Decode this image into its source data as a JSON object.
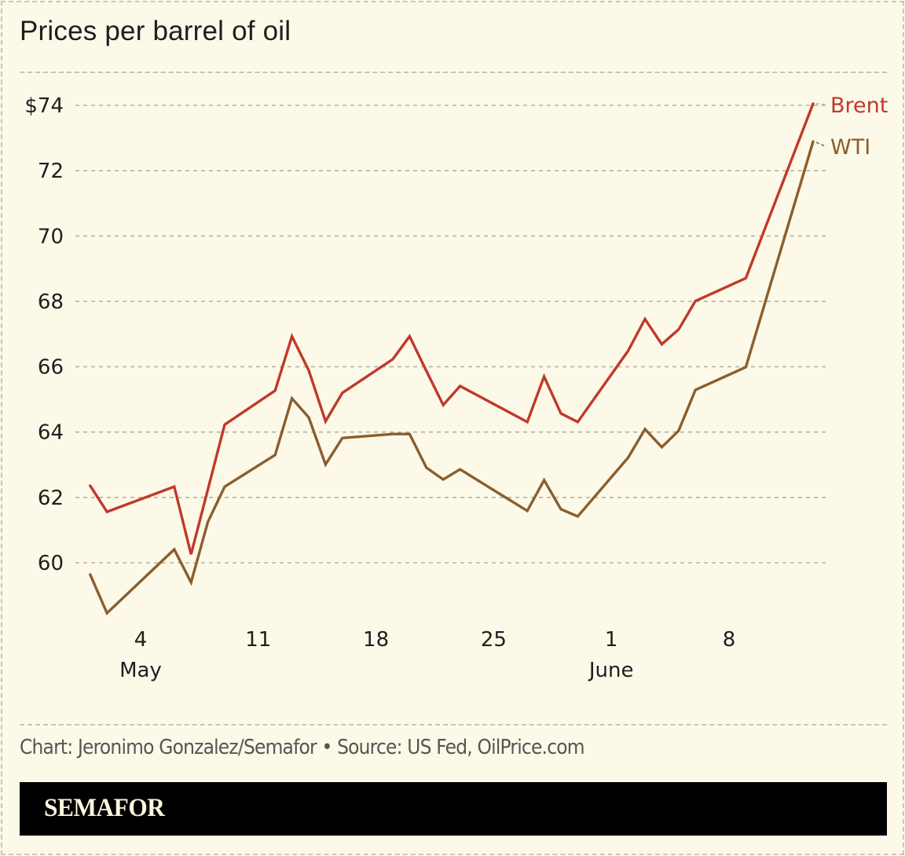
{
  "chart_data": {
    "type": "line",
    "title": "Prices per barrel of oil",
    "xlabel": "",
    "ylabel": "",
    "ylim": [
      58,
      74
    ],
    "y_ticks": [
      60,
      62,
      64,
      66,
      68,
      70,
      72,
      74
    ],
    "y_tick_labels": [
      "60",
      "62",
      "64",
      "66",
      "68",
      "70",
      "72",
      "$74"
    ],
    "grid": true,
    "x_ticks": [
      {
        "day": 4,
        "label": "4",
        "sublabel": "May"
      },
      {
        "day": 11,
        "label": "11",
        "sublabel": ""
      },
      {
        "day": 18,
        "label": "18",
        "sublabel": ""
      },
      {
        "day": 25,
        "label": "25",
        "sublabel": ""
      },
      {
        "day": 32,
        "label": "1",
        "sublabel": "June"
      },
      {
        "day": 39,
        "label": "8",
        "sublabel": ""
      }
    ],
    "x_day_index_note": "days counted from May 0 (May 1 = 1, June 1 = 32)",
    "x": [
      1,
      2,
      6,
      7,
      8,
      9,
      12,
      13,
      14,
      15,
      16,
      19,
      20,
      21,
      22,
      23,
      27,
      28,
      29,
      30,
      33,
      34,
      35,
      36,
      37,
      40,
      44
    ],
    "x_labels": [
      "May 1",
      "May 2",
      "May 6",
      "May 7",
      "May 8",
      "May 9",
      "May 12",
      "May 13",
      "May 14",
      "May 15",
      "May 16",
      "May 19",
      "May 20",
      "May 21",
      "May 22",
      "May 23",
      "May 27",
      "May 28",
      "May 29",
      "May 30",
      "Jun 2",
      "Jun 3",
      "Jun 4",
      "Jun 5",
      "Jun 6",
      "Jun 9",
      "Jun 13"
    ],
    "series": [
      {
        "name": "Brent",
        "color": "#c0392b",
        "values": [
          62.36,
          61.56,
          62.33,
          60.26,
          null,
          64.23,
          65.27,
          66.93,
          65.89,
          64.33,
          65.2,
          66.23,
          66.93,
          65.87,
          64.83,
          65.41,
          64.31,
          65.7,
          64.57,
          64.31,
          66.49,
          67.46,
          66.69,
          67.14,
          68.01,
          68.71,
          74.05
        ]
      },
      {
        "name": "WTI",
        "color": "#8b5e2e",
        "values": [
          59.64,
          58.46,
          60.41,
          59.4,
          61.25,
          62.33,
          63.3,
          65.03,
          64.45,
          63.01,
          63.82,
          63.94,
          63.94,
          62.91,
          62.55,
          62.86,
          61.59,
          62.53,
          61.64,
          61.42,
          63.22,
          64.09,
          63.54,
          64.04,
          65.29,
          65.99,
          72.89
        ]
      }
    ],
    "legend": "right-end-labels"
  },
  "footer": {
    "credit": "Chart: Jeronimo Gonzalez/Semafor • Source: US Fed, OilPrice.com",
    "brand": "SEMAFOR"
  },
  "colors": {
    "background": "#fcf9e8",
    "gridline": "#b5b2a6",
    "brand_bar": "#000000"
  }
}
